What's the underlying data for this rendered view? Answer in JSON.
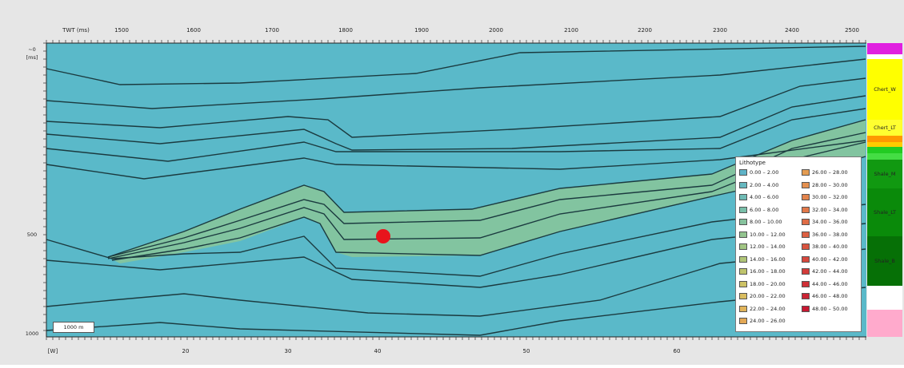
{
  "top_axis": {
    "labels": [
      "TWT (ms)",
      "1500",
      "1600",
      "1700",
      "1800",
      "1900",
      "2000",
      "2100",
      "2200",
      "2300",
      "2400",
      "2500"
    ]
  },
  "left_axis": {
    "labels": [
      "~0",
      "[ms]",
      "500",
      "1000"
    ]
  },
  "bottom_axis": {
    "labels": [
      "[W]",
      "20",
      "30",
      "40",
      "50",
      "60"
    ]
  },
  "scale_bar": "1000 m",
  "legend": {
    "title": "Lithotype",
    "items": [
      {
        "label": "0.00 – 2.00",
        "color": "#5fb3c7"
      },
      {
        "label": "2.00 – 4.00",
        "color": "#66b8c0"
      },
      {
        "label": "4.00 – 6.00",
        "color": "#6fbbb5"
      },
      {
        "label": "6.00 – 8.00",
        "color": "#79bfa9"
      },
      {
        "label": "8.00 – 10.00",
        "color": "#86c29d"
      },
      {
        "label": "10.00 – 12.00",
        "color": "#93c48f"
      },
      {
        "label": "12.00 – 14.00",
        "color": "#a1c583"
      },
      {
        "label": "14.00 – 16.00",
        "color": "#b0c577"
      },
      {
        "label": "16.00 – 18.00",
        "color": "#bfc46d"
      },
      {
        "label": "18.00 – 20.00",
        "color": "#cdc266"
      },
      {
        "label": "20.00 – 22.00",
        "color": "#d9bd60"
      },
      {
        "label": "22.00 – 24.00",
        "color": "#e1b45a"
      },
      {
        "label": "24.00 – 26.00",
        "color": "#e3a855"
      },
      {
        "label": "26.00 – 28.00",
        "color": "#e49c52"
      },
      {
        "label": "28.00 – 30.00",
        "color": "#e4904f"
      },
      {
        "label": "30.00 – 32.00",
        "color": "#e3844c"
      },
      {
        "label": "32.00 – 34.00",
        "color": "#e17849"
      },
      {
        "label": "34.00 – 36.00",
        "color": "#df6c46"
      },
      {
        "label": "36.00 – 38.00",
        "color": "#dc6043"
      },
      {
        "label": "38.00 – 40.00",
        "color": "#d95440"
      },
      {
        "label": "40.00 – 42.00",
        "color": "#d6483d"
      },
      {
        "label": "42.00 – 44.00",
        "color": "#d33c3a"
      },
      {
        "label": "44.00 – 46.00",
        "color": "#cf3037"
      },
      {
        "label": "46.00 – 48.00",
        "color": "#cb2434"
      },
      {
        "label": "48.00 – 50.00",
        "color": "#c71831"
      }
    ]
  },
  "strat_column": [
    {
      "label": "",
      "color": "#e020e0"
    },
    {
      "label": "",
      "color": "#ffffff"
    },
    {
      "label": "Chert_W",
      "color": "#ffff00"
    },
    {
      "label": "Chert_LT",
      "color": "#ffff30"
    },
    {
      "label": "",
      "color": "#ff9900"
    },
    {
      "label": "",
      "color": "#ffcc00"
    },
    {
      "label": "",
      "color": "#22cc22"
    },
    {
      "label": "",
      "color": "#44dd44"
    },
    {
      "label": "Shale_M",
      "color": "#119911"
    },
    {
      "label": "Shale_LT",
      "color": "#0a8a0a"
    },
    {
      "label": "Shale_B",
      "color": "#067006"
    },
    {
      "label": "",
      "color": "#ffffff"
    },
    {
      "label": "",
      "color": "#ffaacc"
    }
  ],
  "well_marker": {
    "color": "#e8141c"
  },
  "colors": {
    "background": "#5ab9c9",
    "horizon": "#1b3a3f",
    "highlight_band": "#86c59b"
  }
}
